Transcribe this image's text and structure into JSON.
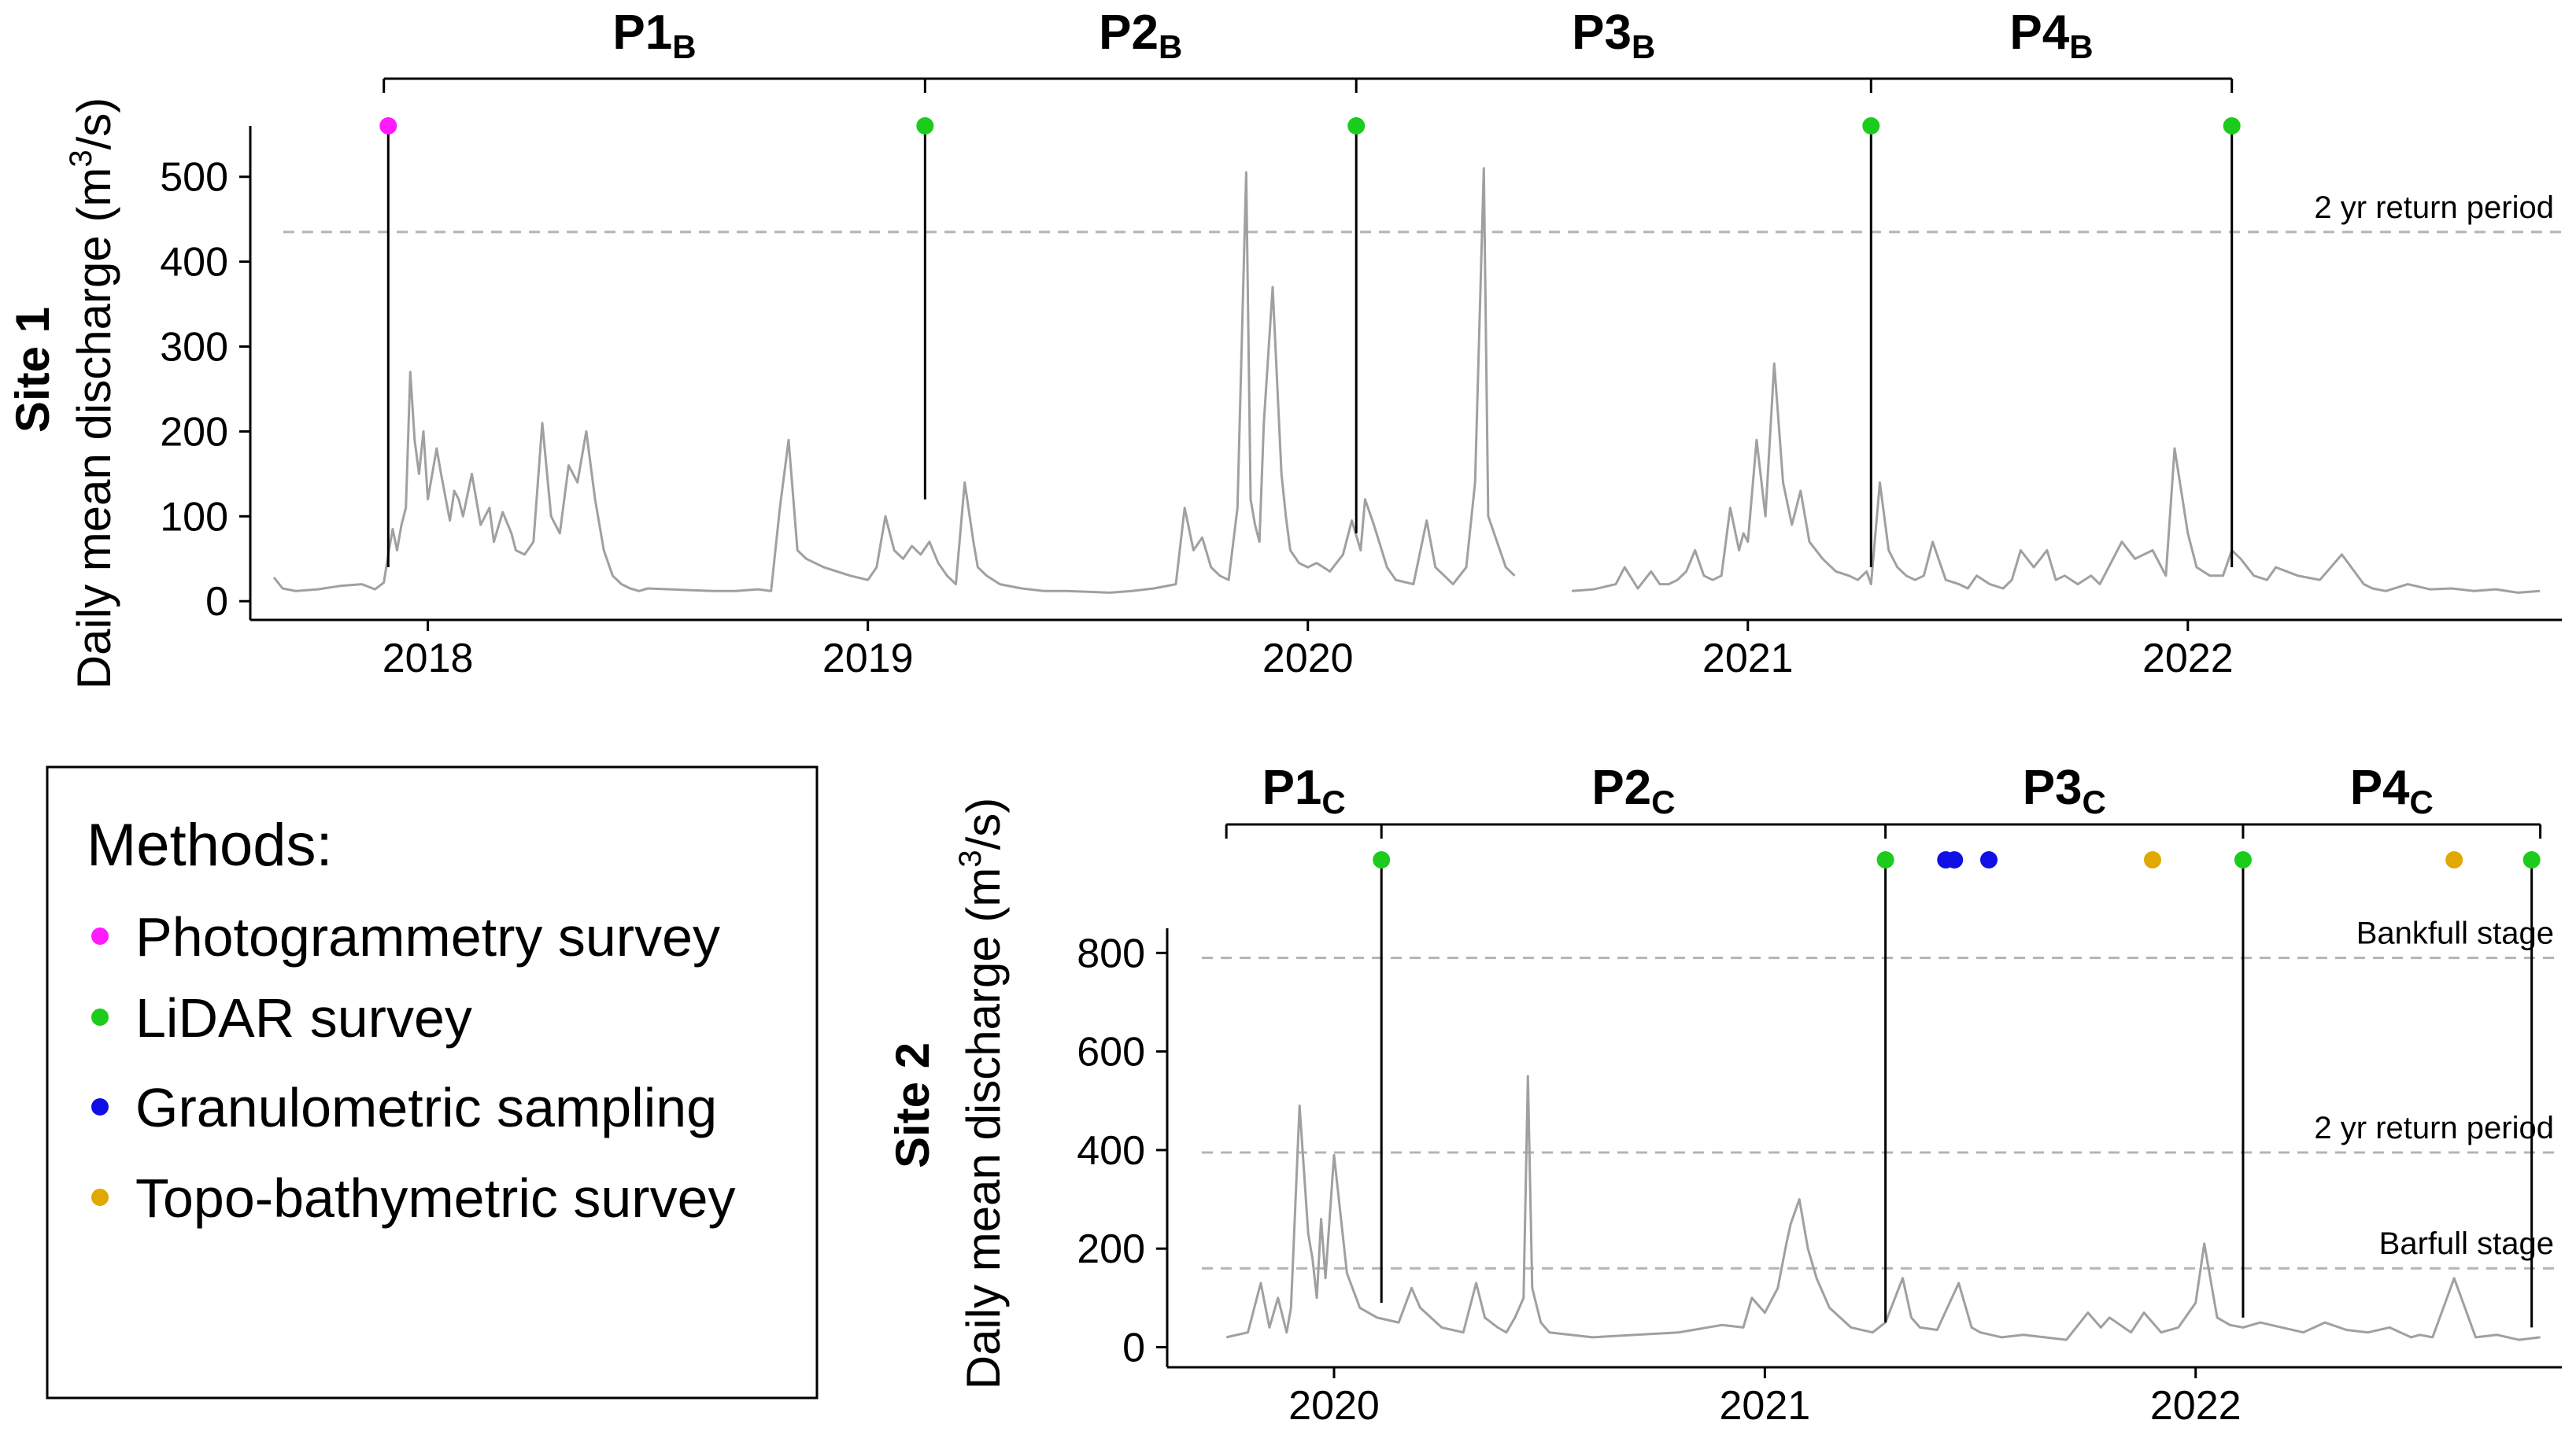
{
  "chart_data": [
    {
      "type": "line",
      "id": "site1",
      "site_label": "Site 1",
      "ylabel_main": "Daily mean discharge (m",
      "ylabel_sup": "3",
      "ylabel_end": "/s)",
      "xlim": [
        2017.6,
        2022.85
      ],
      "ylim": [
        -10,
        560
      ],
      "x_ticks": [
        2018,
        2019,
        2020,
        2021,
        2022
      ],
      "x_tick_labels": [
        "2018",
        "2019",
        "2020",
        "2021",
        "2022"
      ],
      "y_ticks": [
        0,
        100,
        200,
        300,
        400,
        500
      ],
      "y_tick_labels": [
        "0",
        "100",
        "200",
        "300",
        "400",
        "500"
      ],
      "reference_lines": [
        {
          "label": "2 yr return period",
          "y": 435
        }
      ],
      "periods": [
        {
          "base": "P1",
          "sub": "B",
          "start": 2017.9,
          "end": 2019.13
        },
        {
          "base": "P2",
          "sub": "B",
          "start": 2019.13,
          "end": 2020.11
        },
        {
          "base": "P3",
          "sub": "B",
          "start": 2020.11,
          "end": 2021.28
        },
        {
          "base": "P4",
          "sub": "B",
          "start": 2021.28,
          "end": 2022.1
        }
      ],
      "surveys": [
        {
          "x": 2017.91,
          "method": "Photogrammetry survey",
          "line_bottom": 40
        },
        {
          "x": 2019.13,
          "method": "LiDAR survey",
          "line_bottom": 120
        },
        {
          "x": 2020.11,
          "method": "LiDAR survey",
          "line_bottom": 80
        },
        {
          "x": 2021.28,
          "method": "LiDAR survey",
          "line_bottom": 40
        },
        {
          "x": 2022.1,
          "method": "LiDAR survey",
          "line_bottom": 40
        }
      ],
      "series": [
        {
          "name": "discharge",
          "segments": [
            {
              "x": [
                2017.65,
                2017.67,
                2017.7,
                2017.75,
                2017.8,
                2017.85,
                2017.88,
                2017.9,
                2017.91,
                2017.92,
                2017.93,
                2017.94,
                2017.95,
                2017.96,
                2017.97,
                2017.98,
                2017.99,
                2018.0,
                2018.02,
                2018.03,
                2018.05,
                2018.06,
                2018.07,
                2018.08,
                2018.1,
                2018.12,
                2018.14,
                2018.15,
                2018.17,
                2018.19,
                2018.2,
                2018.22,
                2018.24,
                2018.26,
                2018.28,
                2018.3,
                2018.32,
                2018.34,
                2018.36,
                2018.38,
                2018.4,
                2018.42,
                2018.44,
                2018.46,
                2018.48,
                2018.5,
                2018.55,
                2018.6,
                2018.65,
                2018.7,
                2018.75,
                2018.78,
                2018.8,
                2018.82,
                2018.84,
                2018.86,
                2018.88,
                2018.9,
                2018.93,
                2018.96,
                2019.0,
                2019.02,
                2019.04,
                2019.06,
                2019.08,
                2019.1,
                2019.12,
                2019.14,
                2019.16,
                2019.18,
                2019.2,
                2019.22,
                2019.24,
                2019.25,
                2019.27,
                2019.3,
                2019.35,
                2019.4,
                2019.45,
                2019.5,
                2019.55,
                2019.6,
                2019.65,
                2019.7,
                2019.72,
                2019.74,
                2019.76,
                2019.78,
                2019.8,
                2019.82,
                2019.84,
                2019.86,
                2019.87,
                2019.88,
                2019.89,
                2019.9,
                2019.92,
                2019.94,
                2019.95,
                2019.96,
                2019.98,
                2020.0,
                2020.02,
                2020.05,
                2020.08,
                2020.1,
                2020.12,
                2020.13,
                2020.15,
                2020.18,
                2020.2,
                2020.24,
                2020.27,
                2020.29,
                2020.31,
                2020.33,
                2020.36,
                2020.38,
                2020.4,
                2020.41,
                2020.43,
                2020.45,
                2020.47
              ],
              "y": [
                28,
                15,
                12,
                14,
                18,
                20,
                14,
                22,
                55,
                85,
                60,
                90,
                110,
                270,
                190,
                150,
                200,
                120,
                180,
                150,
                95,
                130,
                120,
                100,
                150,
                90,
                110,
                70,
                105,
                80,
                60,
                55,
                70,
                210,
                100,
                80,
                160,
                140,
                200,
                120,
                60,
                30,
                20,
                15,
                12,
                15,
                14,
                13,
                12,
                12,
                14,
                12,
                110,
                190,
                60,
                50,
                45,
                40,
                35,
                30,
                25,
                40,
                100,
                60,
                50,
                65,
                55,
                70,
                45,
                30,
                20,
                140,
                70,
                40,
                30,
                20,
                15,
                12,
                12,
                11,
                10,
                12,
                15,
                20,
                110,
                60,
                75,
                40,
                30,
                25,
                110,
                505,
                120,
                90,
                70,
                210,
                370,
                150,
                100,
                60,
                45,
                40,
                45,
                35,
                55,
                95,
                60,
                120,
                90,
                40,
                25,
                20,
                95,
                40,
                30,
                20,
                40,
                140,
                510,
                100,
                70,
                40,
                30
              ]
            },
            {
              "x": [
                2020.6,
                2020.65,
                2020.7,
                2020.72,
                2020.75,
                2020.78,
                2020.8,
                2020.82,
                2020.84,
                2020.86,
                2020.88,
                2020.9,
                2020.92,
                2020.94,
                2020.96,
                2020.98,
                2020.99,
                2021.0,
                2021.02,
                2021.04,
                2021.06,
                2021.08,
                2021.1,
                2021.12,
                2021.14,
                2021.17,
                2021.2,
                2021.23,
                2021.25,
                2021.27,
                2021.28,
                2021.3,
                2021.32,
                2021.34,
                2021.36,
                2021.38,
                2021.4,
                2021.42,
                2021.45,
                2021.48,
                2021.5,
                2021.52,
                2021.55,
                2021.58,
                2021.6,
                2021.62,
                2021.65,
                2021.68,
                2021.7,
                2021.72,
                2021.75,
                2021.78,
                2021.8,
                2021.85,
                2021.88,
                2021.92,
                2021.95,
                2021.97,
                2022.0,
                2022.02,
                2022.05,
                2022.08,
                2022.1,
                2022.12,
                2022.15,
                2022.18,
                2022.2,
                2022.25,
                2022.3,
                2022.35,
                2022.4,
                2022.42,
                2022.45,
                2022.5,
                2022.55,
                2022.6,
                2022.65,
                2022.7,
                2022.75,
                2022.8
              ],
              "y": [
                12,
                14,
                20,
                40,
                15,
                35,
                20,
                20,
                25,
                35,
                60,
                30,
                25,
                30,
                110,
                60,
                80,
                70,
                190,
                100,
                280,
                140,
                90,
                130,
                70,
                50,
                35,
                30,
                25,
                35,
                20,
                140,
                60,
                40,
                30,
                25,
                30,
                70,
                25,
                20,
                15,
                30,
                20,
                15,
                25,
                60,
                40,
                60,
                25,
                30,
                20,
                30,
                20,
                70,
                50,
                60,
                30,
                180,
                80,
                40,
                30,
                30,
                60,
                50,
                30,
                25,
                40,
                30,
                25,
                55,
                20,
                15,
                12,
                20,
                14,
                15,
                12,
                14,
                10,
                12
              ]
            }
          ]
        }
      ]
    },
    {
      "type": "line",
      "id": "site2",
      "site_label": "Site 2",
      "ylabel_main": "Daily mean discharge (m",
      "ylabel_sup": "3",
      "ylabel_end": "/s)",
      "xlim": [
        2019.62,
        2022.85
      ],
      "ylim": [
        -20,
        850
      ],
      "x_ticks": [
        2020,
        2021,
        2022
      ],
      "x_tick_labels": [
        "2020",
        "2021",
        "2022"
      ],
      "y_ticks": [
        0,
        200,
        400,
        600,
        800
      ],
      "y_tick_labels": [
        "0",
        "200",
        "400",
        "600",
        "800"
      ],
      "reference_lines": [
        {
          "label": "Bankfull stage",
          "y": 790
        },
        {
          "label": "2 yr return period",
          "y": 395
        },
        {
          "label": "Barfull stage",
          "y": 160
        }
      ],
      "periods": [
        {
          "base": "P1",
          "sub": "C",
          "start": 2019.75,
          "end": 2020.11
        },
        {
          "base": "P2",
          "sub": "C",
          "start": 2020.11,
          "end": 2021.28
        },
        {
          "base": "P3",
          "sub": "C",
          "start": 2021.28,
          "end": 2022.11
        },
        {
          "base": "P4",
          "sub": "C",
          "start": 2022.11,
          "end": 2022.8
        }
      ],
      "surveys": [
        {
          "x": 2020.11,
          "method": "LiDAR survey",
          "line_bottom": 90
        },
        {
          "x": 2021.28,
          "method": "LiDAR survey",
          "line_bottom": 50
        },
        {
          "x": 2022.11,
          "method": "LiDAR survey",
          "line_bottom": 60
        },
        {
          "x": 2022.78,
          "method": "LiDAR survey",
          "line_bottom": 40
        },
        {
          "x": 2021.42,
          "method": "Granulometric sampling",
          "line_bottom": null
        },
        {
          "x": 2021.44,
          "method": "Granulometric sampling",
          "line_bottom": null
        },
        {
          "x": 2021.52,
          "method": "Granulometric sampling",
          "line_bottom": null
        },
        {
          "x": 2021.9,
          "method": "Topo-bathymetric survey",
          "line_bottom": null
        },
        {
          "x": 2022.6,
          "method": "Topo-bathymetric survey",
          "line_bottom": null
        }
      ],
      "series": [
        {
          "name": "discharge",
          "segments": [
            {
              "x": [
                2019.75,
                2019.8,
                2019.83,
                2019.85,
                2019.87,
                2019.89,
                2019.9,
                2019.92,
                2019.94,
                2019.95,
                2019.96,
                2019.97,
                2019.98,
                2020.0,
                2020.03,
                2020.06,
                2020.1,
                2020.15,
                2020.18,
                2020.2,
                2020.25,
                2020.3,
                2020.33,
                2020.35,
                2020.38,
                2020.4,
                2020.42,
                2020.44,
                2020.45,
                2020.46,
                2020.48,
                2020.5,
                2020.6,
                2020.7,
                2020.8,
                2020.9,
                2020.95,
                2020.97,
                2021.0,
                2021.03,
                2021.05,
                2021.06,
                2021.08,
                2021.1,
                2021.12,
                2021.15,
                2021.2,
                2021.25,
                2021.28,
                2021.32,
                2021.34,
                2021.36,
                2021.4,
                2021.45,
                2021.48,
                2021.5,
                2021.55,
                2021.6,
                2021.7,
                2021.75,
                2021.78,
                2021.8,
                2021.85,
                2021.88,
                2021.92,
                2021.96,
                2022.0,
                2022.02,
                2022.05,
                2022.08,
                2022.11,
                2022.15,
                2022.2,
                2022.25,
                2022.3,
                2022.35,
                2022.4,
                2022.45,
                2022.5,
                2022.52,
                2022.55,
                2022.6,
                2022.65,
                2022.7,
                2022.75,
                2022.8
              ],
              "y": [
                20,
                30,
                130,
                40,
                100,
                30,
                80,
                490,
                230,
                180,
                100,
                260,
                140,
                390,
                150,
                80,
                60,
                50,
                120,
                80,
                40,
                30,
                130,
                60,
                40,
                30,
                60,
                100,
                550,
                120,
                50,
                30,
                20,
                25,
                30,
                45,
                40,
                100,
                70,
                120,
                210,
                250,
                300,
                200,
                140,
                80,
                40,
                30,
                50,
                140,
                60,
                40,
                35,
                130,
                40,
                30,
                20,
                25,
                15,
                70,
                40,
                60,
                30,
                70,
                30,
                40,
                90,
                210,
                60,
                45,
                40,
                50,
                40,
                30,
                50,
                35,
                30,
                40,
                20,
                25,
                20,
                140,
                20,
                25,
                15,
                20
              ]
            }
          ]
        }
      ]
    }
  ],
  "legend": {
    "title": "Methods:",
    "items": [
      {
        "label": "Photogrammetry survey",
        "color": "#ff1aff"
      },
      {
        "label": "LiDAR survey",
        "color": "#1ccc1c"
      },
      {
        "label": "Granulometric sampling",
        "color": "#1010e6"
      },
      {
        "label": "Topo-bathymetric survey",
        "color": "#e0a800"
      }
    ]
  },
  "colors": {
    "series": "#a0a0a0",
    "reference": "#b4b4b4",
    "Photogrammetry survey": "#ff1aff",
    "LiDAR survey": "#1ccc1c",
    "Granulometric sampling": "#1010e6",
    "Topo-bathymetric survey": "#e0a800"
  }
}
